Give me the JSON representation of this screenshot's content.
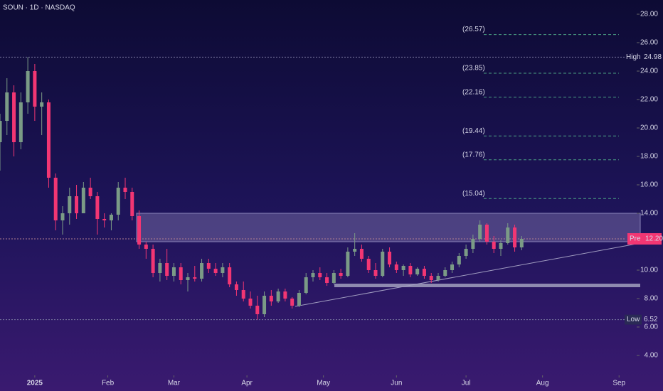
{
  "chart_data": {
    "type": "candlestick",
    "title": "SOUN · 1D · NASDAQ",
    "up_color": "#7b9b86",
    "down_color": "#f23673",
    "x": [
      -10,
      -8,
      -6,
      -4,
      -2,
      0,
      2,
      4,
      6,
      8,
      10,
      12,
      14,
      16,
      18,
      20,
      22,
      24,
      26,
      28,
      30,
      32,
      34,
      36,
      38,
      40,
      42,
      44,
      46,
      48,
      50,
      52,
      54,
      56,
      58,
      60,
      62,
      64,
      66,
      68,
      70,
      72,
      74,
      76,
      78,
      80,
      82,
      84,
      86,
      88,
      90,
      92,
      94,
      96,
      98,
      100,
      102,
      104,
      106,
      108,
      110,
      112,
      114,
      116,
      118,
      120,
      122,
      124,
      126,
      128,
      130,
      132,
      134,
      136,
      138,
      140
    ],
    "ohlc": [
      [
        19,
        21,
        17,
        20.5
      ],
      [
        20.5,
        23.5,
        19.5,
        22.5
      ],
      [
        22.5,
        23,
        18,
        19
      ],
      [
        19,
        22.5,
        18.5,
        21.8
      ],
      [
        21.8,
        24.98,
        21,
        24
      ],
      [
        24,
        24.5,
        20.5,
        21.5
      ],
      [
        21.5,
        22.5,
        19.5,
        21.8
      ],
      [
        21.8,
        22,
        15.8,
        16.5
      ],
      [
        16.5,
        16.8,
        12.8,
        13.5
      ],
      [
        13.5,
        14.5,
        12.5,
        14
      ],
      [
        14,
        15.8,
        13.2,
        15.2
      ],
      [
        15.2,
        16,
        13.6,
        14
      ],
      [
        14,
        16.2,
        14,
        15.8
      ],
      [
        15.8,
        16.5,
        15,
        15.2
      ],
      [
        15.2,
        15.5,
        12.5,
        13.6
      ],
      [
        13.6,
        14,
        13,
        13.5
      ],
      [
        13.5,
        14,
        12.8,
        13.9
      ],
      [
        13.9,
        16.2,
        13.5,
        15.8
      ],
      [
        15.8,
        16.5,
        15,
        15.5
      ],
      [
        15.5,
        15.8,
        13.5,
        13.8
      ],
      [
        13.8,
        14.2,
        11.5,
        11.8
      ],
      [
        11.8,
        12,
        10.8,
        11.5
      ],
      [
        11.5,
        11.8,
        9.5,
        9.8
      ],
      [
        9.8,
        10.8,
        9.2,
        10.5
      ],
      [
        10.5,
        11.5,
        9.3,
        9.6
      ],
      [
        9.6,
        10.5,
        9.2,
        10.2
      ],
      [
        10.2,
        10.5,
        9,
        9.3
      ],
      [
        9.3,
        9.8,
        8.5,
        9.5
      ],
      [
        9.5,
        10.3,
        9.2,
        9.4
      ],
      [
        9.4,
        10.8,
        9.2,
        10.5
      ],
      [
        10.5,
        10.8,
        9.8,
        10.1
      ],
      [
        10.1,
        10.5,
        9.6,
        9.8
      ],
      [
        9.8,
        10.5,
        9.5,
        10.2
      ],
      [
        10.2,
        10.5,
        8.8,
        9
      ],
      [
        9,
        9.2,
        8.2,
        8.6
      ],
      [
        8.6,
        9.2,
        7.8,
        8
      ],
      [
        8,
        8.5,
        7.3,
        7.5
      ],
      [
        7.5,
        8.2,
        6.52,
        6.9
      ],
      [
        6.9,
        8.5,
        6.7,
        8.2
      ],
      [
        8.2,
        8.6,
        7.5,
        7.8
      ],
      [
        7.8,
        8.7,
        7.7,
        8.5
      ],
      [
        8.5,
        8.7,
        7.8,
        8
      ],
      [
        8,
        8.1,
        7.3,
        7.5
      ],
      [
        7.5,
        8.6,
        7.4,
        8.4
      ],
      [
        8.4,
        9.8,
        8.3,
        9.5
      ],
      [
        9.5,
        10,
        9.2,
        9.8
      ],
      [
        9.8,
        10.2,
        9.3,
        9.5
      ],
      [
        9.5,
        9.8,
        8.9,
        9.1
      ],
      [
        9.1,
        10,
        9,
        9.8
      ],
      [
        9.8,
        10.1,
        9.4,
        9.6
      ],
      [
        9.6,
        11.6,
        9.5,
        11.3
      ],
      [
        11.3,
        12.6,
        11,
        11.5
      ],
      [
        11.5,
        11.8,
        10.6,
        10.8
      ],
      [
        10.8,
        11,
        9.8,
        10
      ],
      [
        10,
        10.5,
        9.4,
        9.6
      ],
      [
        9.6,
        11.5,
        9.5,
        11.3
      ],
      [
        11.3,
        11.6,
        10.2,
        10.4
      ],
      [
        10.4,
        10.6,
        9.8,
        10
      ],
      [
        10,
        10.4,
        9.6,
        10.3
      ],
      [
        10.3,
        10.5,
        9.5,
        9.7
      ],
      [
        9.7,
        10.2,
        9.6,
        10.1
      ],
      [
        10.1,
        10.3,
        9.4,
        9.6
      ],
      [
        9.6,
        9.8,
        9.1,
        9.3
      ],
      [
        9.3,
        9.8,
        9.2,
        9.6
      ],
      [
        9.6,
        10.2,
        9.5,
        10
      ],
      [
        10,
        10.6,
        9.8,
        10.4
      ],
      [
        10.4,
        11.2,
        10.2,
        11
      ],
      [
        11,
        11.8,
        10.8,
        11.5
      ],
      [
        11.5,
        12.5,
        11.2,
        12.2
      ],
      [
        12.2,
        13.5,
        12,
        13.2
      ],
      [
        13.2,
        13.3,
        11.8,
        12
      ],
      [
        12,
        12.4,
        11.2,
        11.5
      ],
      [
        11.5,
        12.1,
        11,
        11.9
      ],
      [
        11.9,
        13.3,
        11.8,
        13
      ],
      [
        13,
        13.2,
        11.3,
        11.6
      ],
      [
        11.6,
        12.4,
        11.4,
        12.2
      ]
    ],
    "xlim": [
      -10,
      170
    ],
    "xticks": [
      {
        "value": 0,
        "label": "2025"
      },
      {
        "value": 21,
        "label": "Feb"
      },
      {
        "value": 40,
        "label": "Mar"
      },
      {
        "value": 61,
        "label": "Apr"
      },
      {
        "value": 83,
        "label": "May"
      },
      {
        "value": 104,
        "label": "Jun"
      },
      {
        "value": 124,
        "label": "Jul"
      },
      {
        "value": 146,
        "label": "Aug"
      },
      {
        "value": 168,
        "label": "Sep"
      }
    ],
    "ylim": [
      3,
      29
    ],
    "yticks": [
      {
        "value": 4,
        "label": "4.00"
      },
      {
        "value": 6,
        "label": "6.00"
      },
      {
        "value": 8,
        "label": "8.00"
      },
      {
        "value": 10,
        "label": "10.00"
      },
      {
        "value": 12,
        "label": "12.00"
      },
      {
        "value": 14,
        "label": "14.00"
      },
      {
        "value": 16,
        "label": "16.00"
      },
      {
        "value": 18,
        "label": "18.00"
      },
      {
        "value": 20,
        "label": "20.00"
      },
      {
        "value": 22,
        "label": "22.00"
      },
      {
        "value": 24,
        "label": "24.00"
      },
      {
        "value": 26,
        "label": "26.00"
      },
      {
        "value": 28,
        "label": "28.00"
      }
    ],
    "fib_levels": [
      {
        "value": 26.57,
        "label": "(26.57)"
      },
      {
        "value": 23.85,
        "label": "(23.85)"
      },
      {
        "value": 22.16,
        "label": "(22.16)"
      },
      {
        "value": 19.44,
        "label": "(19.44)"
      },
      {
        "value": 17.76,
        "label": "(17.76)"
      },
      {
        "value": 15.04,
        "label": "(15.04)"
      }
    ],
    "high": {
      "label": "High",
      "value": 24.98
    },
    "low": {
      "label": "Low",
      "value": 6.52
    },
    "last": {
      "label": "Pre",
      "value": 12.2,
      "value_label": "12.20"
    }
  }
}
